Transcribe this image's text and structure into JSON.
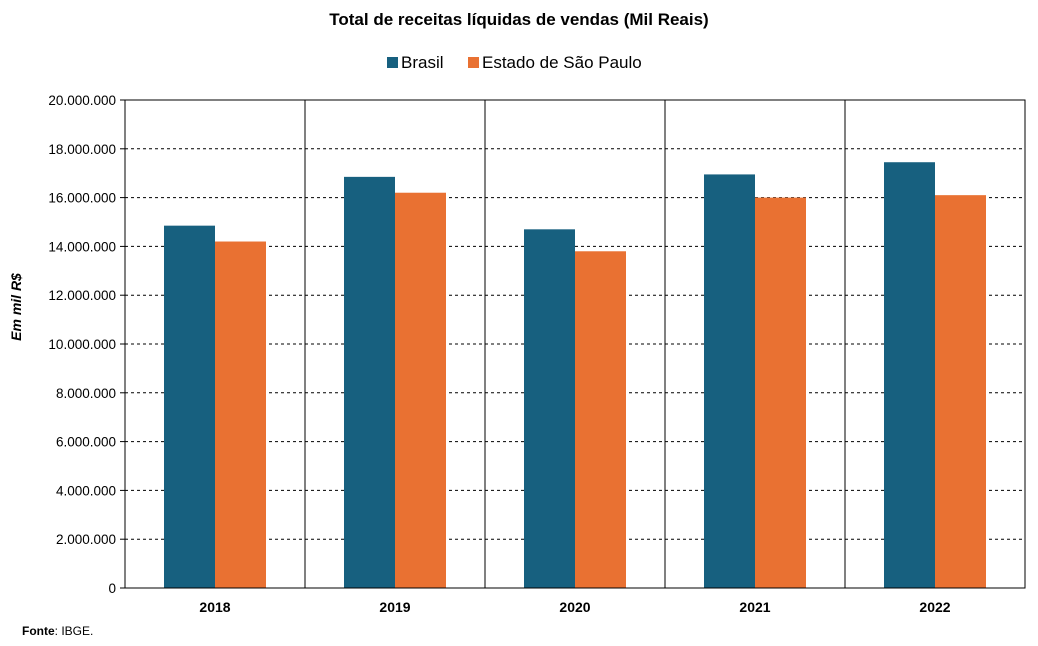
{
  "chart_data": {
    "type": "bar",
    "title": "Total de receitas líquidas de vendas (Mil Reais)",
    "ylabel": "Em mil R$",
    "xlabel": "",
    "categories": [
      "2018",
      "2019",
      "2020",
      "2021",
      "2022"
    ],
    "series": [
      {
        "name": "Brasil",
        "color": "#17607f",
        "values": [
          14850000,
          16850000,
          14700000,
          16950000,
          17450000
        ]
      },
      {
        "name": "Estado de São Paulo",
        "color": "#e97132",
        "values": [
          14200000,
          16200000,
          13800000,
          16000000,
          16100000
        ]
      }
    ],
    "ylim": [
      0,
      20000000
    ],
    "yticks": [
      "0",
      "2.000.000",
      "4.000.000",
      "6.000.000",
      "8.000.000",
      "10.000.000",
      "12.000.000",
      "14.000.000",
      "16.000.000",
      "18.000.000",
      "20.000.000"
    ],
    "grid": true,
    "legend_position": "top"
  },
  "source": {
    "label": "Fonte",
    "text": ": IBGE."
  }
}
